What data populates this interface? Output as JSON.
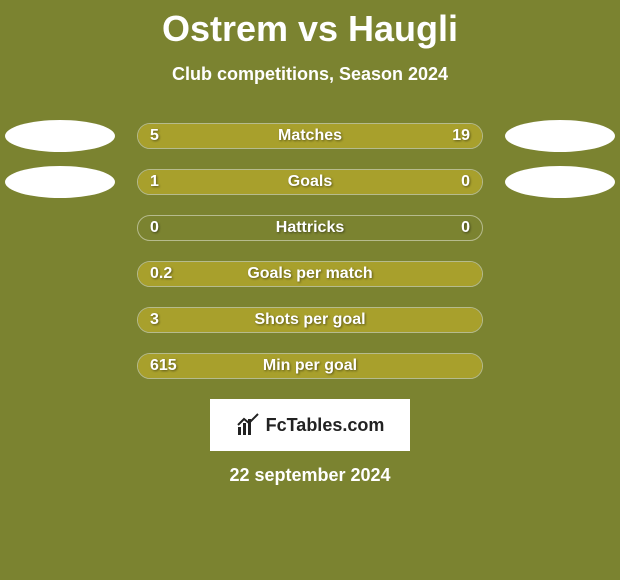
{
  "background_color": "#7b8330",
  "text_color": "#ffffff",
  "shadow_color": "rgba(0,0,0,0.45)",
  "title": "Ostrem vs Haugli",
  "subtitle": "Club competitions, Season 2024",
  "date": "22 september 2024",
  "logo_text": "FcTables.com",
  "bar_colors": {
    "left": "#a8a02c",
    "right": "#a8a02c",
    "track": "transparent"
  },
  "metrics": [
    {
      "name": "Matches",
      "player1_value": "5",
      "player2_value": "19",
      "left_pct": 20.8,
      "right_pct": 79.2,
      "show_ellipses": true
    },
    {
      "name": "Goals",
      "player1_value": "1",
      "player2_value": "0",
      "left_pct": 75.5,
      "right_pct": 24.5,
      "show_ellipses": true
    },
    {
      "name": "Hattricks",
      "player1_value": "0",
      "player2_value": "0",
      "left_pct": 0,
      "right_pct": 0,
      "show_ellipses": false
    },
    {
      "name": "Goals per match",
      "player1_value": "0.2",
      "player2_value": "",
      "left_pct": 100,
      "right_pct": 0,
      "show_ellipses": false
    },
    {
      "name": "Shots per goal",
      "player1_value": "3",
      "player2_value": "",
      "left_pct": 100,
      "right_pct": 0,
      "show_ellipses": false
    },
    {
      "name": "Min per goal",
      "player1_value": "615",
      "player2_value": "",
      "left_pct": 100,
      "right_pct": 0,
      "show_ellipses": false
    }
  ]
}
